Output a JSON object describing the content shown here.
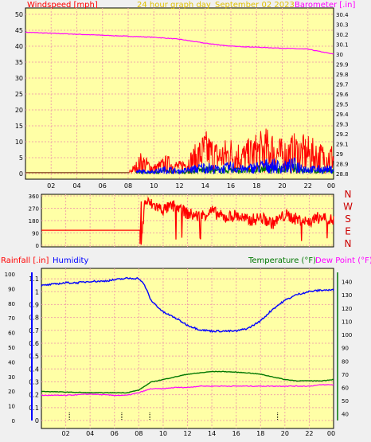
{
  "header": {
    "title": "24 hour graph day",
    "date": "September 02 2023",
    "wind_label": "Windspeed [mph]",
    "baro_label": "Barometer [.in]"
  },
  "colors": {
    "outer_bg": "#f0f0f0",
    "plot_bg": "#ffffa6",
    "grid": "#f0a8a8",
    "title": "#e0c000",
    "red": "#ff0000",
    "magenta": "#ff00ff",
    "blue": "#0000ff",
    "green": "#007700",
    "darkred": "#cc0000",
    "wind_baseline": "#996633"
  },
  "chart_data": [
    {
      "id": "wind_baro",
      "type": "line",
      "title": "24 hour graph day",
      "x_ticks": [
        "02",
        "04",
        "06",
        "08",
        "10",
        "12",
        "14",
        "16",
        "18",
        "20",
        "22",
        "00"
      ],
      "y_left_label": "Windspeed [mph]",
      "y_left_ticks": [
        "0",
        "5",
        "10",
        "15",
        "20",
        "25",
        "30",
        "35",
        "40",
        "45",
        "50"
      ],
      "y_left_lim": [
        0,
        50
      ],
      "y_right_label": "Barometer [.in]",
      "y_right_ticks": [
        "28.8",
        "28.9",
        "29",
        "29.1",
        "29.2",
        "29.3",
        "29.4",
        "29.5",
        "29.6",
        "29.7",
        "29.8",
        "29.9",
        "30",
        "30.1",
        "30.2",
        "30.3",
        "30.4"
      ],
      "y_right_lim": [
        28.8,
        30.4
      ],
      "series": [
        {
          "name": "Barometer [.in]",
          "axis": "right",
          "x": [
            0,
            2,
            4,
            6,
            8,
            10,
            12,
            14,
            16,
            18,
            20,
            22,
            24
          ],
          "values": [
            30.22,
            30.21,
            30.2,
            30.19,
            30.18,
            30.17,
            30.15,
            30.11,
            30.08,
            30.07,
            30.06,
            30.05,
            30.0
          ]
        },
        {
          "name": "Gust",
          "axis": "left",
          "x": [
            0,
            8,
            8.5,
            9,
            10,
            11,
            12,
            13,
            14,
            15,
            16,
            17,
            18,
            19,
            20,
            21,
            22,
            23,
            24
          ],
          "values": [
            1,
            1,
            3,
            7,
            3,
            6,
            4,
            8,
            14,
            10,
            12,
            10,
            13,
            15,
            11,
            13,
            12,
            10,
            10
          ]
        },
        {
          "name": "Windspeed",
          "axis": "left",
          "x": [
            0,
            8,
            9,
            10,
            11,
            12,
            13,
            14,
            15,
            16,
            17,
            18,
            19,
            20,
            21,
            22,
            23,
            24
          ],
          "values": [
            0.3,
            0.3,
            1,
            1,
            2,
            1,
            2,
            3,
            2,
            3,
            2,
            3,
            4,
            3,
            4,
            2,
            2,
            2
          ]
        }
      ]
    },
    {
      "id": "direction",
      "type": "line",
      "x_ticks": [
        "02",
        "04",
        "06",
        "08",
        "10",
        "12",
        "14",
        "16",
        "18",
        "20",
        "22",
        "00"
      ],
      "y_ticks": [
        "0",
        "90",
        "180",
        "270",
        "360"
      ],
      "ylim": [
        0,
        360
      ],
      "compass_labels": [
        "N",
        "W",
        "S",
        "E",
        "N"
      ],
      "series": [
        {
          "name": "Wind direction",
          "x": [
            0,
            8.1,
            8.2,
            8.5,
            9,
            10,
            11,
            12,
            13,
            14,
            15,
            16,
            17,
            18,
            19,
            20,
            21,
            22,
            23,
            24
          ],
          "values": [
            110,
            110,
            10,
            320,
            300,
            260,
            290,
            230,
            210,
            250,
            200,
            220,
            180,
            200,
            160,
            220,
            190,
            170,
            210,
            180
          ]
        }
      ]
    },
    {
      "id": "rain_hum_temp",
      "type": "line",
      "x_ticks": [
        "02",
        "04",
        "06",
        "08",
        "10",
        "12",
        "14",
        "16",
        "18",
        "20",
        "22",
        "00"
      ],
      "rain_label": "Rainfall [.in]",
      "humidity_label": "Humidity",
      "temp_label": "Temperature (°F)",
      "dew_label": "Dew Point (°F)",
      "y_rain_ticks": [
        "0",
        "0.1",
        "0.2",
        "0.3",
        "0.4",
        "0.5",
        "0.6",
        "0.7",
        "0.8",
        "0.9",
        "1",
        "1.1"
      ],
      "y_rain_lim": [
        0,
        1.15
      ],
      "y_hum_ticks": [
        "0",
        "10",
        "20",
        "30",
        "40",
        "50",
        "60",
        "70",
        "80",
        "90",
        "100"
      ],
      "y_hum_lim": [
        0,
        100
      ],
      "y_temp_ticks": [
        "40",
        "50",
        "60",
        "70",
        "80",
        "90",
        "100",
        "110",
        "120",
        "130",
        "140"
      ],
      "y_temp_lim": [
        35,
        147
      ],
      "series": [
        {
          "name": "Humidity",
          "axis": "humidity",
          "x": [
            0,
            1,
            2,
            3,
            4,
            5,
            6,
            7,
            8,
            8.5,
            9,
            10,
            11,
            12,
            13,
            14,
            15,
            16,
            17,
            18,
            19,
            20,
            21,
            22,
            23,
            24
          ],
          "values": [
            92,
            93,
            94,
            94,
            95,
            95,
            96,
            97,
            97,
            92,
            82,
            74,
            70,
            65,
            62,
            61,
            61,
            61,
            63,
            68,
            76,
            82,
            86,
            88,
            89,
            89
          ]
        },
        {
          "name": "Temperature (°F)",
          "axis": "temp",
          "x": [
            0,
            2,
            4,
            6,
            7,
            8,
            9,
            10,
            11,
            12,
            13,
            14,
            15,
            16,
            17,
            18,
            19,
            20,
            21,
            22,
            23,
            24
          ],
          "values": [
            57,
            56.5,
            56,
            56,
            56,
            58,
            64,
            66,
            68,
            70,
            71,
            72,
            72,
            71.5,
            71,
            70,
            68,
            66,
            65,
            65,
            65,
            66
          ]
        },
        {
          "name": "Dew Point (°F)",
          "axis": "temp",
          "x": [
            0,
            2,
            4,
            6,
            7,
            8,
            9,
            10,
            11,
            12,
            13,
            14,
            15,
            16,
            17,
            18,
            19,
            20,
            21,
            22,
            23,
            24
          ],
          "values": [
            54,
            54,
            55,
            54,
            54,
            56,
            59,
            59,
            60,
            60,
            61,
            61,
            61,
            61,
            61,
            61,
            61,
            61,
            61,
            61,
            62,
            62
          ]
        }
      ]
    }
  ]
}
